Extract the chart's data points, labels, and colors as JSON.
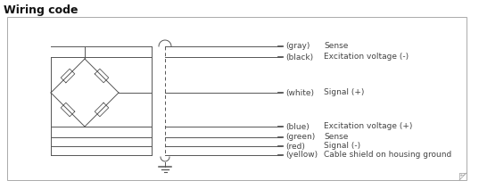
{
  "title": "Wiring code",
  "title_fontsize": 9,
  "title_fontweight": "bold",
  "bg_color": "#ffffff",
  "line_color": "#555555",
  "box_edge_color": "#aaaaaa",
  "labels": [
    [
      "(gray)",
      "Sense"
    ],
    [
      "(black)",
      "Excitation voltage (-)"
    ],
    [
      "(white)",
      "Signal (+)"
    ],
    [
      "(blue)",
      "Excitation voltage (+)"
    ],
    [
      "(green)",
      "Sense"
    ],
    [
      "(red)",
      "Signal (-)"
    ],
    [
      "(yellow)",
      "Cable shield on housing ground"
    ]
  ],
  "label_fontsize": 6.5,
  "label_color": "#444444"
}
